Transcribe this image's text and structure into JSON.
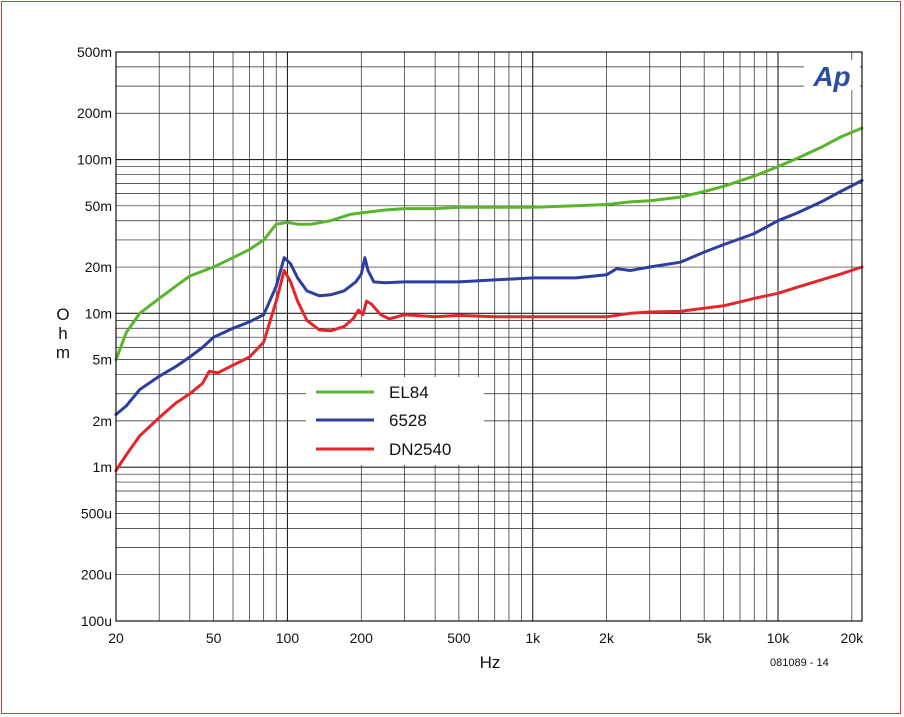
{
  "chart_data": {
    "type": "line",
    "xscale": "log",
    "yscale": "log",
    "xlim": [
      20,
      22000
    ],
    "ylim": [
      0.0001,
      0.5
    ],
    "xlabel": "Hz",
    "ylabel": "Ohm",
    "xtick_labels": [
      {
        "value": 20,
        "label": "20"
      },
      {
        "value": 50,
        "label": "50"
      },
      {
        "value": 100,
        "label": "100"
      },
      {
        "value": 200,
        "label": "200"
      },
      {
        "value": 500,
        "label": "500"
      },
      {
        "value": 1000,
        "label": "1k"
      },
      {
        "value": 2000,
        "label": "2k"
      },
      {
        "value": 5000,
        "label": "5k"
      },
      {
        "value": 10000,
        "label": "10k"
      },
      {
        "value": 20000,
        "label": "20k"
      }
    ],
    "ytick_labels": [
      {
        "value": 0.5,
        "label": "500m"
      },
      {
        "value": 0.2,
        "label": "200m"
      },
      {
        "value": 0.1,
        "label": "100m"
      },
      {
        "value": 0.05,
        "label": "50m"
      },
      {
        "value": 0.02,
        "label": "20m"
      },
      {
        "value": 0.01,
        "label": "10m"
      },
      {
        "value": 0.005,
        "label": "5m"
      },
      {
        "value": 0.002,
        "label": "2m"
      },
      {
        "value": 0.001,
        "label": "1m"
      },
      {
        "value": 0.0005,
        "label": "500u"
      },
      {
        "value": 0.0002,
        "label": "200u"
      },
      {
        "value": 0.0001,
        "label": "100u"
      }
    ],
    "grid": true,
    "legend_position": "center-left",
    "series": [
      {
        "name": "EL84",
        "color": "#5ab52e",
        "points": [
          [
            20,
            0.005
          ],
          [
            22,
            0.0075
          ],
          [
            25,
            0.01
          ],
          [
            30,
            0.0125
          ],
          [
            35,
            0.015
          ],
          [
            40,
            0.0175
          ],
          [
            50,
            0.02
          ],
          [
            60,
            0.023
          ],
          [
            70,
            0.026
          ],
          [
            80,
            0.03
          ],
          [
            90,
            0.038
          ],
          [
            100,
            0.039
          ],
          [
            110,
            0.038
          ],
          [
            125,
            0.038
          ],
          [
            150,
            0.04
          ],
          [
            180,
            0.044
          ],
          [
            200,
            0.045
          ],
          [
            250,
            0.047
          ],
          [
            300,
            0.048
          ],
          [
            400,
            0.048
          ],
          [
            500,
            0.049
          ],
          [
            700,
            0.049
          ],
          [
            1000,
            0.049
          ],
          [
            1500,
            0.05
          ],
          [
            2000,
            0.051
          ],
          [
            2500,
            0.053
          ],
          [
            3000,
            0.054
          ],
          [
            4000,
            0.057
          ],
          [
            5000,
            0.062
          ],
          [
            6000,
            0.067
          ],
          [
            8000,
            0.078
          ],
          [
            10000,
            0.09
          ],
          [
            12000,
            0.102
          ],
          [
            15000,
            0.12
          ],
          [
            18000,
            0.14
          ],
          [
            22000,
            0.16
          ]
        ]
      },
      {
        "name": "6528",
        "color": "#2c3f9e",
        "points": [
          [
            20,
            0.0022
          ],
          [
            22,
            0.0025
          ],
          [
            25,
            0.0032
          ],
          [
            30,
            0.0039
          ],
          [
            35,
            0.0045
          ],
          [
            40,
            0.0052
          ],
          [
            45,
            0.006
          ],
          [
            50,
            0.007
          ],
          [
            60,
            0.008
          ],
          [
            70,
            0.0088
          ],
          [
            80,
            0.0098
          ],
          [
            90,
            0.015
          ],
          [
            97,
            0.023
          ],
          [
            103,
            0.021
          ],
          [
            110,
            0.017
          ],
          [
            120,
            0.014
          ],
          [
            135,
            0.013
          ],
          [
            150,
            0.0132
          ],
          [
            170,
            0.014
          ],
          [
            190,
            0.016
          ],
          [
            200,
            0.018
          ],
          [
            207,
            0.023
          ],
          [
            213,
            0.019
          ],
          [
            225,
            0.016
          ],
          [
            250,
            0.0158
          ],
          [
            300,
            0.016
          ],
          [
            400,
            0.016
          ],
          [
            500,
            0.016
          ],
          [
            700,
            0.0165
          ],
          [
            1000,
            0.017
          ],
          [
            1500,
            0.017
          ],
          [
            2000,
            0.0178
          ],
          [
            2200,
            0.0195
          ],
          [
            2500,
            0.019
          ],
          [
            3000,
            0.02
          ],
          [
            4000,
            0.0215
          ],
          [
            5000,
            0.025
          ],
          [
            6000,
            0.028
          ],
          [
            8000,
            0.033
          ],
          [
            10000,
            0.04
          ],
          [
            12000,
            0.045
          ],
          [
            15000,
            0.053
          ],
          [
            18000,
            0.062
          ],
          [
            22000,
            0.073
          ]
        ]
      },
      {
        "name": "DN2540",
        "color": "#e3262a",
        "points": [
          [
            20,
            0.00095
          ],
          [
            22,
            0.0012
          ],
          [
            25,
            0.0016
          ],
          [
            30,
            0.0021
          ],
          [
            35,
            0.0026
          ],
          [
            40,
            0.003
          ],
          [
            45,
            0.0035
          ],
          [
            48,
            0.0042
          ],
          [
            52,
            0.0041
          ],
          [
            60,
            0.0046
          ],
          [
            70,
            0.0052
          ],
          [
            80,
            0.0065
          ],
          [
            90,
            0.012
          ],
          [
            97,
            0.019
          ],
          [
            103,
            0.016
          ],
          [
            110,
            0.012
          ],
          [
            120,
            0.009
          ],
          [
            135,
            0.0078
          ],
          [
            150,
            0.0077
          ],
          [
            170,
            0.0082
          ],
          [
            185,
            0.0092
          ],
          [
            195,
            0.0105
          ],
          [
            203,
            0.0098
          ],
          [
            210,
            0.012
          ],
          [
            220,
            0.0115
          ],
          [
            240,
            0.0098
          ],
          [
            260,
            0.0092
          ],
          [
            300,
            0.0098
          ],
          [
            400,
            0.0095
          ],
          [
            500,
            0.0097
          ],
          [
            700,
            0.0095
          ],
          [
            1000,
            0.0095
          ],
          [
            1500,
            0.0095
          ],
          [
            2000,
            0.0095
          ],
          [
            2500,
            0.01
          ],
          [
            3000,
            0.0102
          ],
          [
            4000,
            0.0103
          ],
          [
            5000,
            0.0108
          ],
          [
            6000,
            0.0112
          ],
          [
            8000,
            0.0125
          ],
          [
            10000,
            0.0135
          ],
          [
            12000,
            0.0148
          ],
          [
            15000,
            0.0165
          ],
          [
            18000,
            0.018
          ],
          [
            22000,
            0.02
          ]
        ]
      }
    ],
    "annotations": [
      "081089 - 14"
    ],
    "logo": "Ap"
  }
}
